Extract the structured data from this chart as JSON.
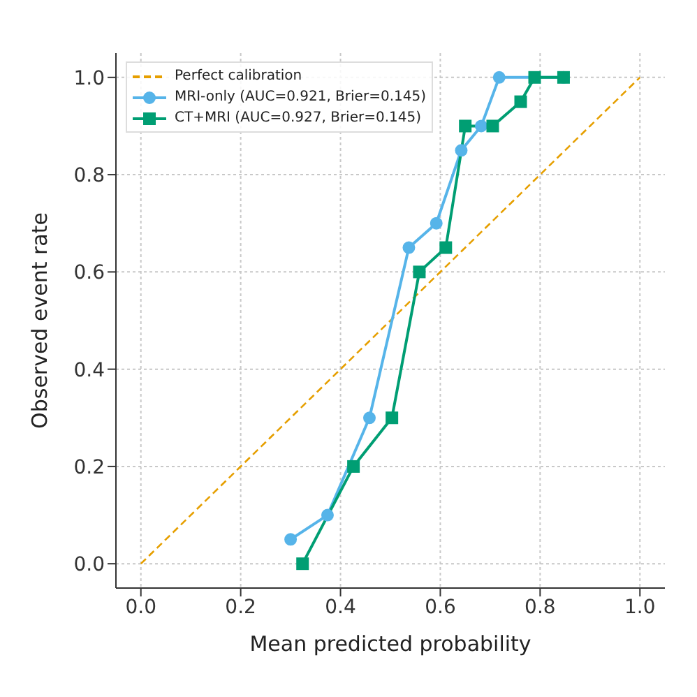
{
  "chart_data": {
    "type": "line",
    "xlabel": "Mean predicted probability",
    "ylabel": "Observed event rate",
    "xlim": [
      -0.05,
      1.05
    ],
    "ylim": [
      -0.05,
      1.05
    ],
    "xticks": [
      {
        "value": 0,
        "label": "0.0"
      },
      {
        "value": 0.2,
        "label": "0.2"
      },
      {
        "value": 0.4,
        "label": "0.4"
      },
      {
        "value": 0.6,
        "label": "0.6"
      },
      {
        "value": 0.8,
        "label": "0.8"
      },
      {
        "value": 1,
        "label": "1.0"
      }
    ],
    "yticks": [
      {
        "value": 0,
        "label": "0.0"
      },
      {
        "value": 0.2,
        "label": "0.2"
      },
      {
        "value": 0.4,
        "label": "0.4"
      },
      {
        "value": 0.6,
        "label": "0.6"
      },
      {
        "value": 0.8,
        "label": "0.8"
      },
      {
        "value": 1,
        "label": "1.0"
      }
    ],
    "grid": true,
    "legend": "top left",
    "series": [
      {
        "name": "Perfect calibration",
        "color": "#e69f00",
        "x": [
          0,
          1
        ],
        "values": [
          0,
          1
        ],
        "line_style": "dashed",
        "marker": "none"
      },
      {
        "name": "MRI-only (AUC=0.921, Brier=0.145)",
        "color": "#56b4e9",
        "x": [
          0.3,
          0.374,
          0.458,
          0.537,
          0.592,
          0.642,
          0.682,
          0.718,
          0.847
        ],
        "values": [
          0.05,
          0.1,
          0.3,
          0.65,
          0.7,
          0.85,
          0.9,
          1.0,
          1.0
        ],
        "line_style": "solid",
        "marker": "circle"
      },
      {
        "name": "CT+MRI (AUC=0.927, Brier=0.145)",
        "color": "#009e73",
        "x": [
          0.324,
          0.426,
          0.503,
          0.558,
          0.611,
          0.65,
          0.705,
          0.761,
          0.789,
          0.847
        ],
        "values": [
          0.0,
          0.2,
          0.3,
          0.6,
          0.65,
          0.9,
          0.9,
          0.95,
          1.0,
          1.0
        ],
        "line_style": "solid",
        "marker": "square"
      }
    ]
  }
}
